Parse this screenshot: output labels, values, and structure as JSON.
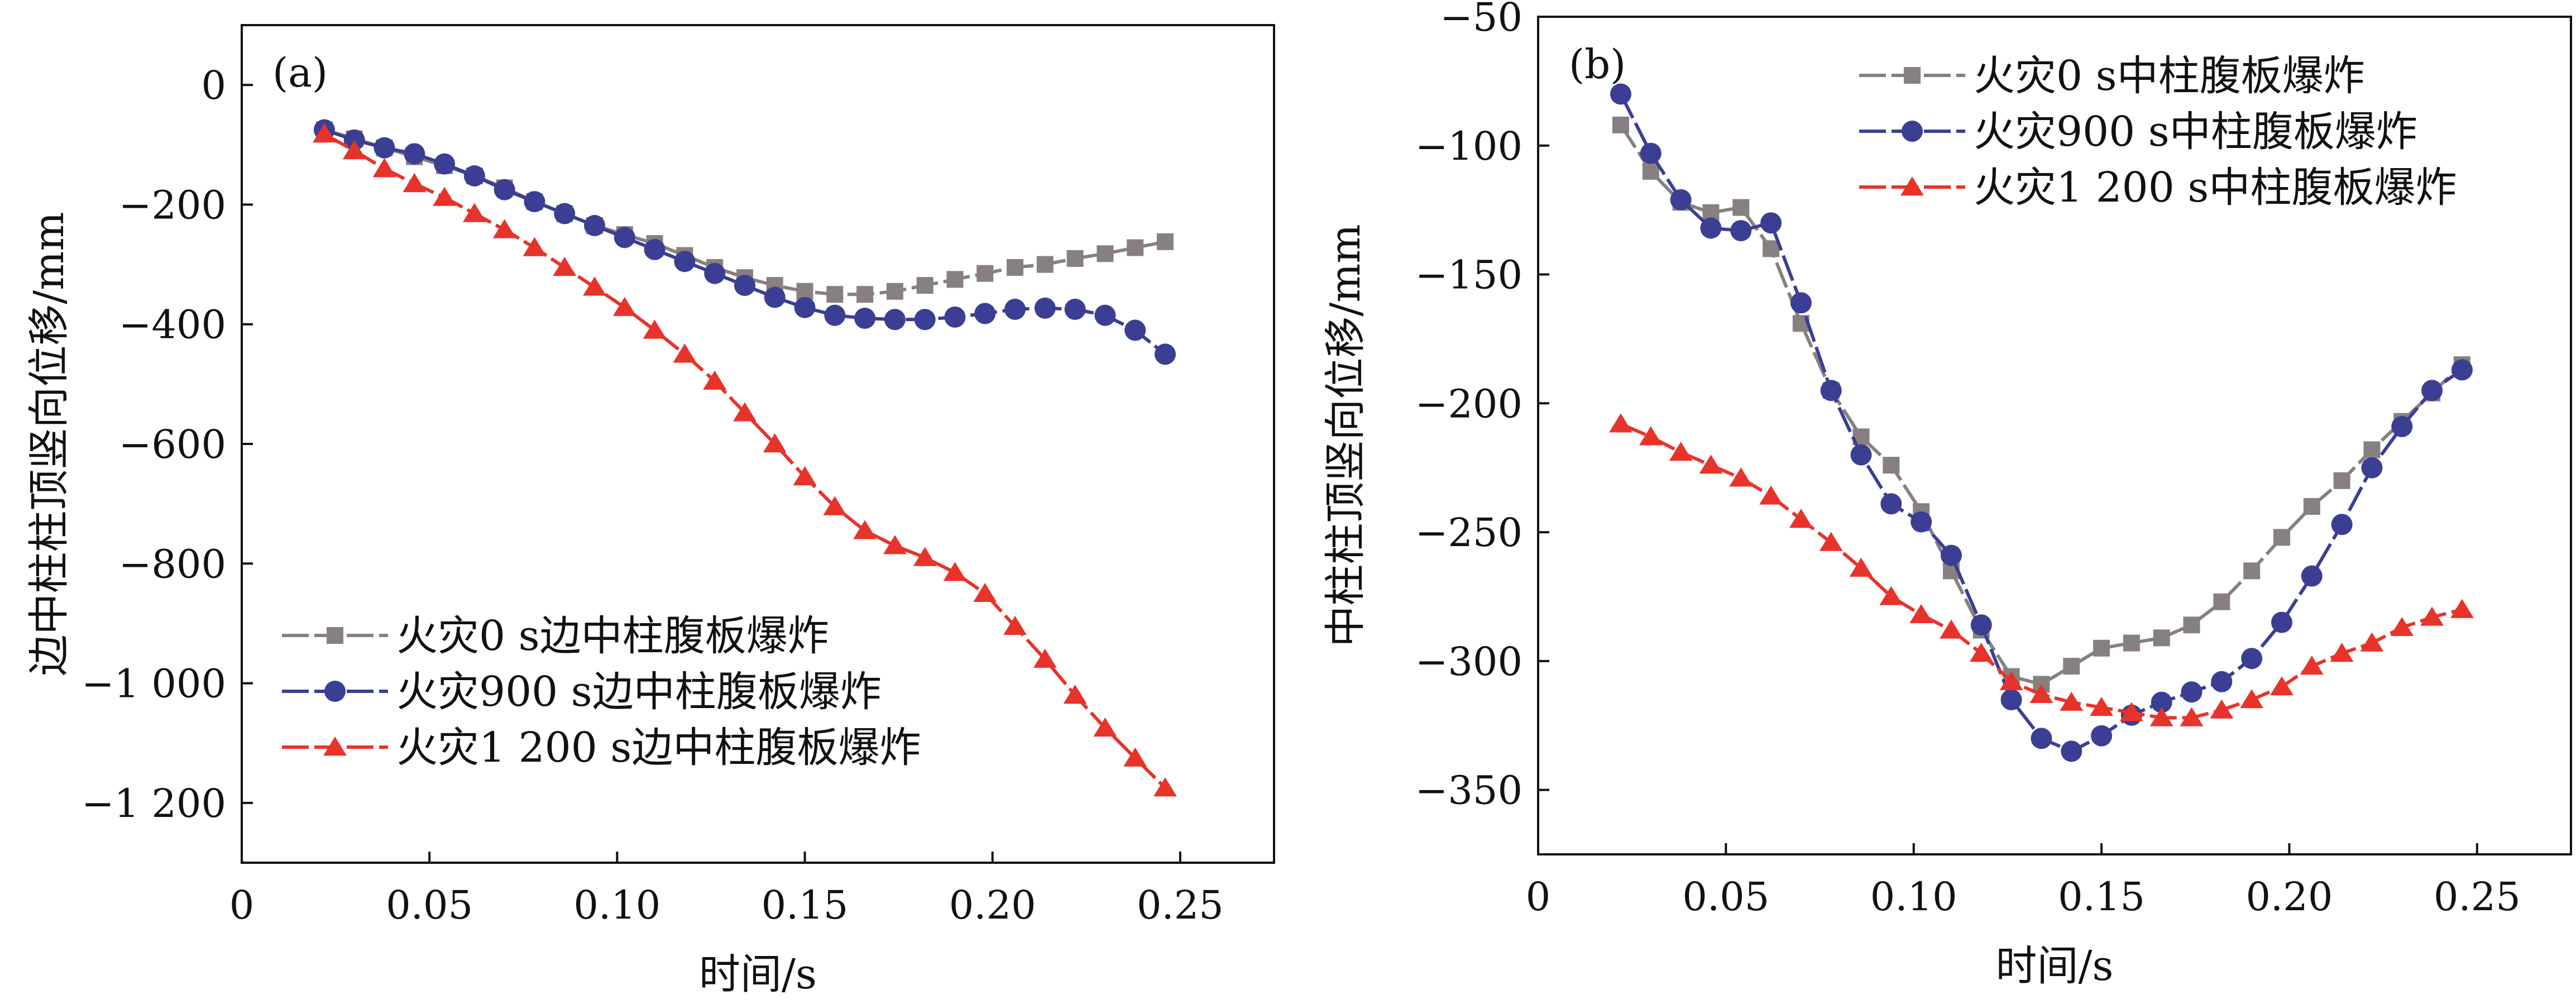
{
  "colors": {
    "fire_0": "#888080",
    "fire_900": "#3a3f94",
    "fire_1200": "#e8332a",
    "axis": "#111111",
    "background": "#ffffff"
  },
  "chart_data": [
    {
      "type": "line",
      "panel_label": "(a)",
      "title": "",
      "xlabel": "时间/s",
      "ylabel": "边中柱柱顶竖向位移/mm",
      "xlim": [
        0,
        0.275
      ],
      "ylim": [
        -1300,
        100
      ],
      "x_ticks": [
        0,
        0.05,
        0.1,
        0.15,
        0.2,
        0.25
      ],
      "x_tick_labels": [
        "0",
        "0.05",
        "0.10",
        "0.15",
        "0.20",
        "0.25"
      ],
      "y_ticks": [
        0,
        -200,
        -400,
        -600,
        -800,
        -1000,
        -1200
      ],
      "y_tick_labels": [
        "0",
        "−200",
        "−400",
        "−600",
        "−800",
        "−1 000",
        "−1 200"
      ],
      "legend_position": "lower-left",
      "series": [
        {
          "name": "火灾0 s边中柱腹板爆炸",
          "marker": "square",
          "color_key": "fire_0",
          "x": [
            0.022,
            0.03,
            0.038,
            0.046,
            0.054,
            0.062,
            0.07,
            0.078,
            0.086,
            0.094,
            0.102,
            0.11,
            0.118,
            0.126,
            0.134,
            0.142,
            0.15,
            0.158,
            0.166,
            0.174,
            0.182,
            0.19,
            0.198,
            0.206,
            0.214,
            0.222,
            0.23,
            0.238,
            0.246
          ],
          "y": [
            -75,
            -90,
            -105,
            -120,
            -135,
            -152,
            -172,
            -195,
            -215,
            -235,
            -250,
            -265,
            -285,
            -305,
            -322,
            -335,
            -345,
            -350,
            -350,
            -345,
            -335,
            -325,
            -315,
            -305,
            -300,
            -290,
            -282,
            -272,
            -262
          ]
        },
        {
          "name": "火灾900 s边中柱腹板爆炸",
          "marker": "circle",
          "color_key": "fire_900",
          "x": [
            0.022,
            0.03,
            0.038,
            0.046,
            0.054,
            0.062,
            0.07,
            0.078,
            0.086,
            0.094,
            0.102,
            0.11,
            0.118,
            0.126,
            0.134,
            0.142,
            0.15,
            0.158,
            0.166,
            0.174,
            0.182,
            0.19,
            0.198,
            0.206,
            0.214,
            0.222,
            0.23,
            0.238,
            0.246
          ],
          "y": [
            -75,
            -92,
            -105,
            -115,
            -132,
            -152,
            -175,
            -195,
            -215,
            -235,
            -255,
            -275,
            -295,
            -315,
            -335,
            -355,
            -372,
            -385,
            -390,
            -392,
            -392,
            -388,
            -382,
            -375,
            -373,
            -375,
            -385,
            -410,
            -450
          ]
        },
        {
          "name": "火灾1 200 s边中柱腹板爆炸",
          "marker": "triangle",
          "color_key": "fire_1200",
          "x": [
            0.022,
            0.03,
            0.038,
            0.046,
            0.054,
            0.062,
            0.07,
            0.078,
            0.086,
            0.094,
            0.102,
            0.11,
            0.118,
            0.126,
            0.134,
            0.142,
            0.15,
            0.158,
            0.166,
            0.174,
            0.182,
            0.19,
            0.198,
            0.206,
            0.214,
            0.222,
            0.23,
            0.238,
            0.246
          ],
          "y": [
            -82,
            -110,
            -140,
            -165,
            -188,
            -215,
            -242,
            -272,
            -305,
            -338,
            -372,
            -410,
            -450,
            -495,
            -548,
            -600,
            -655,
            -705,
            -745,
            -770,
            -790,
            -815,
            -850,
            -905,
            -960,
            -1020,
            -1075,
            -1125,
            -1175
          ]
        }
      ]
    },
    {
      "type": "line",
      "panel_label": "(b)",
      "title": "",
      "xlabel": "时间/s",
      "ylabel": "中柱柱顶竖向位移/mm",
      "xlim": [
        0,
        0.275
      ],
      "ylim": [
        -375,
        -50
      ],
      "x_ticks": [
        0,
        0.05,
        0.1,
        0.15,
        0.2,
        0.25
      ],
      "x_tick_labels": [
        "0",
        "0.05",
        "0.10",
        "0.15",
        "0.20",
        "0.25"
      ],
      "y_ticks": [
        -50,
        -100,
        -150,
        -200,
        -250,
        -300,
        -350
      ],
      "y_tick_labels": [
        "−50",
        "−100",
        "−150",
        "−200",
        "−250",
        "−300",
        "−350"
      ],
      "legend_position": "top-right",
      "series": [
        {
          "name": "火灾0 s中柱腹板爆炸",
          "marker": "square",
          "color_key": "fire_0",
          "x": [
            0.022,
            0.03,
            0.038,
            0.046,
            0.054,
            0.062,
            0.07,
            0.078,
            0.086,
            0.094,
            0.102,
            0.11,
            0.118,
            0.126,
            0.134,
            0.142,
            0.15,
            0.158,
            0.166,
            0.174,
            0.182,
            0.19,
            0.198,
            0.206,
            0.214,
            0.222,
            0.23,
            0.238,
            0.246
          ],
          "y": [
            -92,
            -110,
            -122,
            -126,
            -124,
            -140,
            -169,
            -195,
            -213,
            -224,
            -242,
            -265,
            -288,
            -306,
            -309,
            -302,
            -295,
            -293,
            -291,
            -286,
            -277,
            -265,
            -252,
            -240,
            -230,
            -218,
            -207,
            -196,
            -185
          ]
        },
        {
          "name": "火灾900 s中柱腹板爆炸",
          "marker": "circle",
          "color_key": "fire_900",
          "x": [
            0.022,
            0.03,
            0.038,
            0.046,
            0.054,
            0.062,
            0.07,
            0.078,
            0.086,
            0.094,
            0.102,
            0.11,
            0.118,
            0.126,
            0.134,
            0.142,
            0.15,
            0.158,
            0.166,
            0.174,
            0.182,
            0.19,
            0.198,
            0.206,
            0.214,
            0.222,
            0.23,
            0.238,
            0.246
          ],
          "y": [
            -80,
            -103,
            -121,
            -132,
            -133,
            -130,
            -161,
            -195,
            -220,
            -239,
            -246,
            -259,
            -286,
            -315,
            -330,
            -335,
            -329,
            -321,
            -316,
            -312,
            -308,
            -299,
            -285,
            -267,
            -247,
            -225,
            -209,
            -195,
            -187
          ]
        },
        {
          "name": "火灾1 200 s中柱腹板爆炸",
          "marker": "triangle",
          "color_key": "fire_1200",
          "x": [
            0.022,
            0.03,
            0.038,
            0.046,
            0.054,
            0.062,
            0.07,
            0.078,
            0.086,
            0.094,
            0.102,
            0.11,
            0.118,
            0.126,
            0.134,
            0.142,
            0.15,
            0.158,
            0.166,
            0.174,
            0.182,
            0.19,
            0.198,
            0.206,
            0.214,
            0.222,
            0.23,
            0.238,
            0.246
          ],
          "y": [
            -208,
            -213,
            -219,
            -224,
            -229,
            -236,
            -245,
            -254,
            -264,
            -275,
            -282,
            -288,
            -297,
            -308,
            -313,
            -316,
            -318,
            -320,
            -322,
            -322,
            -319,
            -315,
            -310,
            -302,
            -297,
            -293,
            -287,
            -283,
            -280
          ]
        }
      ]
    }
  ]
}
